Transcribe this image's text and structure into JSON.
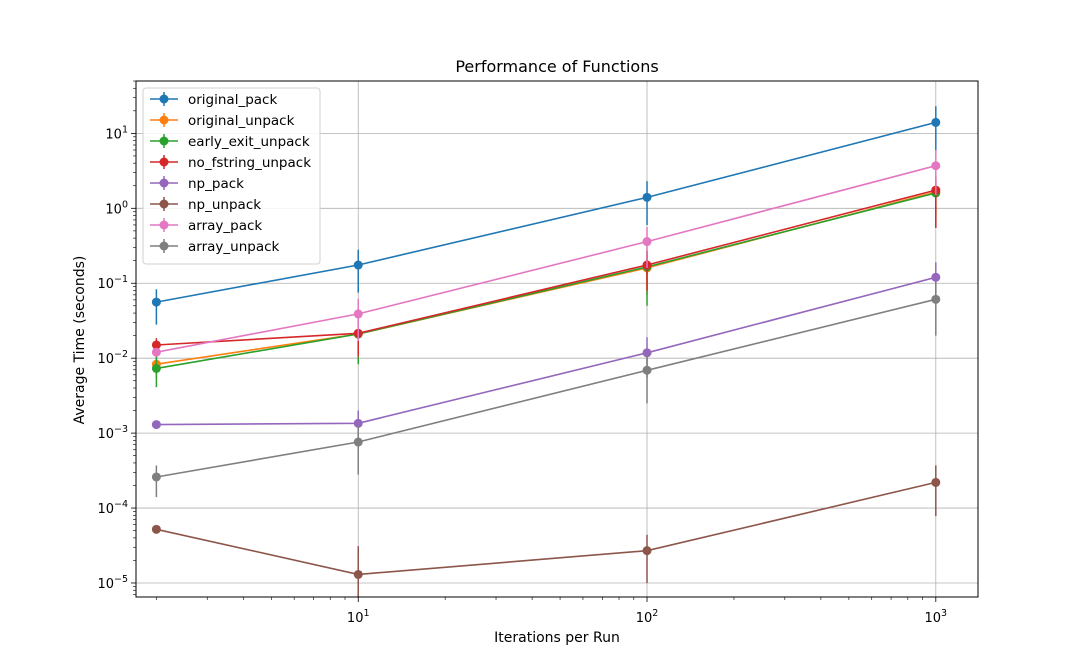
{
  "chart_data": {
    "type": "line",
    "title": "Performance of Functions",
    "xlabel": "Iterations per Run",
    "ylabel": "Average Time (seconds)",
    "xscale": "log",
    "yscale": "log",
    "xlim": [
      1.7,
      1400
    ],
    "ylim": [
      6.5e-06,
      50
    ],
    "x": [
      2,
      10,
      100,
      1000
    ],
    "x_ticks": [
      {
        "value": 10,
        "base": "10",
        "exp": "1"
      },
      {
        "value": 100,
        "base": "10",
        "exp": "2"
      },
      {
        "value": 1000,
        "base": "10",
        "exp": "3"
      }
    ],
    "y_ticks": [
      {
        "value": 1e-05,
        "base": "10",
        "exp": "−5"
      },
      {
        "value": 0.0001,
        "base": "10",
        "exp": "−4"
      },
      {
        "value": 0.001,
        "base": "10",
        "exp": "−3"
      },
      {
        "value": 0.01,
        "base": "10",
        "exp": "−2"
      },
      {
        "value": 0.1,
        "base": "10",
        "exp": "−1"
      },
      {
        "value": 1,
        "base": "10",
        "exp": "0"
      },
      {
        "value": 10,
        "base": "10",
        "exp": "1"
      }
    ],
    "grid": true,
    "legend_position": "top-left",
    "series": [
      {
        "name": "original_pack",
        "color": "#1f77b4",
        "values": [
          0.056,
          0.175,
          1.4,
          14.0
        ],
        "err_low": [
          0.028,
          0.075,
          0.6,
          6.0
        ],
        "err_high": [
          0.083,
          0.28,
          2.3,
          23.0
        ]
      },
      {
        "name": "original_unpack",
        "color": "#ff7f0e",
        "values": [
          0.0083,
          0.021,
          0.16,
          1.65
        ],
        "err_low": [
          0.0055,
          0.0095,
          0.07,
          0.75
        ],
        "err_high": [
          0.0115,
          0.031,
          0.24,
          2.3
        ]
      },
      {
        "name": "early_exit_unpack",
        "color": "#2ca02c",
        "values": [
          0.0073,
          0.021,
          0.165,
          1.6
        ],
        "err_low": [
          0.0041,
          0.0083,
          0.05,
          0.55
        ],
        "err_high": [
          0.0105,
          0.033,
          0.27,
          2.5
        ]
      },
      {
        "name": "no_fstring_unpack",
        "color": "#d62728",
        "values": [
          0.015,
          0.0215,
          0.175,
          1.75
        ],
        "err_low": [
          0.0115,
          0.0105,
          0.08,
          0.55
        ],
        "err_high": [
          0.0185,
          0.033,
          0.27,
          2.7
        ]
      },
      {
        "name": "np_pack",
        "color": "#9467bd",
        "values": [
          0.0013,
          0.00135,
          0.0118,
          0.12
        ],
        "err_low": [
          0.00115,
          0.0009,
          0.0055,
          0.055
        ],
        "err_high": [
          0.00145,
          0.002,
          0.019,
          0.19
        ]
      },
      {
        "name": "np_unpack",
        "color": "#8c564b",
        "values": [
          5.2e-05,
          1.3e-05,
          2.7e-05,
          0.00022
        ],
        "err_low": [
          4.8e-05,
          6.5e-06,
          1e-05,
          7.8e-05
        ],
        "err_high": [
          5.6e-05,
          3.1e-05,
          4.4e-05,
          0.00037
        ]
      },
      {
        "name": "array_pack",
        "color": "#e377c2",
        "values": [
          0.012,
          0.039,
          0.36,
          3.7
        ],
        "err_low": [
          0.0105,
          0.017,
          0.16,
          1.5
        ],
        "err_high": [
          0.0135,
          0.062,
          0.56,
          6.0
        ]
      },
      {
        "name": "array_unpack",
        "color": "#7f7f7f",
        "values": [
          0.00026,
          0.00076,
          0.0069,
          0.061
        ],
        "err_low": [
          0.00014,
          0.00028,
          0.0025,
          0.02
        ],
        "err_high": [
          0.00037,
          0.00125,
          0.0112,
          0.1
        ]
      }
    ]
  }
}
